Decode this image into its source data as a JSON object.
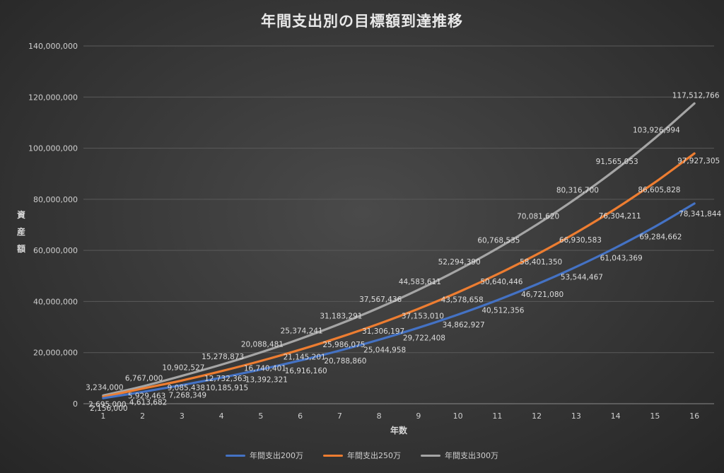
{
  "chart_data": {
    "type": "line",
    "title": "年間支出別の目標額到達推移",
    "xlabel": "年数",
    "ylabel": "資産額",
    "categories": [
      "1",
      "2",
      "3",
      "4",
      "5",
      "6",
      "7",
      "8",
      "9",
      "10",
      "11",
      "12",
      "13",
      "14",
      "15",
      "16"
    ],
    "y_ticks": [
      "0",
      "20,000,000",
      "40,000,000",
      "60,000,000",
      "80,000,000",
      "100,000,000",
      "120,000,000",
      "140,000,000"
    ],
    "ylim": [
      0,
      140000000
    ],
    "legend_position": "bottom",
    "grid": "horizontal",
    "series": [
      {
        "name": "年間支出200万",
        "color": "#4472c4",
        "values": [
          2156000,
          4613682,
          7268349,
          10185915,
          13392321,
          16916160,
          20788860,
          25044958,
          29722408,
          34862927,
          40512356,
          46721080,
          53544467,
          61043369,
          69284662,
          78341844
        ],
        "labels": [
          "2,156,000",
          "4,613,682",
          "7,268,349",
          "10,185,915",
          "13,392,321",
          "16,916,160",
          "20,788,860",
          "25,044,958",
          "29,722,408",
          "34,862,927",
          "40,512,356",
          "46,721,080",
          "53,544,467",
          "61,043,369",
          "69,284,662",
          "78,341,844"
        ]
      },
      {
        "name": "年間支出250万",
        "color": "#ed7d31",
        "values": [
          2695000,
          5929463,
          9085438,
          12732363,
          16740401,
          21145201,
          25986075,
          31306197,
          37153010,
          43578658,
          50640446,
          58401350,
          66930583,
          76304211,
          86605828,
          97927305
        ],
        "labels": [
          "2,695,000",
          "5,929,463",
          "9,085,438",
          "12,732,363",
          "16,740,401",
          "21,145,201",
          "25,986,075",
          "31,306,197",
          "37,153,010",
          "43,578,658",
          "50,640,446",
          "58,401,350",
          "66,930,583",
          "76,304,211",
          "86,605,828",
          "97,927,305"
        ]
      },
      {
        "name": "年間支出300万",
        "color": "#a5a5a5",
        "values": [
          3234000,
          6767000,
          10902527,
          15278873,
          20088481,
          25374241,
          31183291,
          37567436,
          44583611,
          52294390,
          60768535,
          70081620,
          80316700,
          91565053,
          103926994,
          117512766
        ],
        "labels": [
          "3,234,000",
          "6,767,000",
          "10,902,527",
          "15,278,873",
          "20,088,481",
          "25,374,241",
          "31,183,291",
          "37,567,436",
          "44,583,611",
          "52,294,390",
          "60,768,535",
          "70,081,620",
          "80,316,700",
          "91,565,053",
          "103,926,994",
          "117,512,766"
        ]
      }
    ]
  }
}
